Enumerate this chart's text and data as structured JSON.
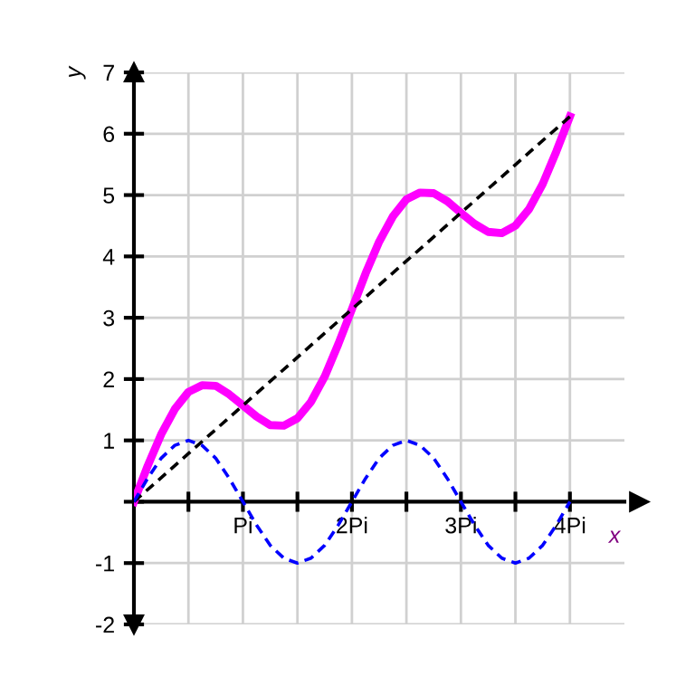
{
  "chart_data": {
    "type": "line",
    "xlabel": "x",
    "ylabel": "y",
    "x": [
      0,
      0.125,
      0.25,
      0.375,
      0.5,
      0.625,
      0.75,
      0.875,
      1,
      1.125,
      1.25,
      1.375,
      1.5,
      1.625,
      1.75,
      1.875,
      2,
      2.125,
      2.25,
      2.375,
      2.5,
      2.625,
      2.75,
      2.875,
      3,
      3.125,
      3.25,
      3.375,
      3.5,
      3.625,
      3.75,
      3.875,
      4
    ],
    "series": [
      {
        "color": "#ff00ff",
        "line_style": "solid",
        "values": [
          0,
          0.58,
          1.1,
          1.51,
          1.79,
          1.9,
          1.89,
          1.75,
          1.57,
          1.39,
          1.25,
          1.24,
          1.36,
          1.63,
          2.04,
          2.57,
          3.14,
          3.72,
          4.24,
          4.65,
          4.93,
          5.04,
          5.03,
          4.9,
          4.71,
          4.53,
          4.4,
          4.38,
          4.5,
          4.77,
          5.18,
          5.71,
          6.28
        ]
      },
      {
        "color": "#000000",
        "line_style": "dashed",
        "x": [
          0,
          4
        ],
        "values": [
          0,
          6.28
        ]
      },
      {
        "color": "#0000ff",
        "line_style": "dashed",
        "values": [
          0,
          0.38,
          0.71,
          0.92,
          1,
          0.92,
          0.71,
          0.38,
          0,
          -0.38,
          -0.71,
          -0.92,
          -1,
          -0.92,
          -0.71,
          -0.38,
          0,
          0.38,
          0.71,
          0.92,
          1,
          0.92,
          0.71,
          0.38,
          0,
          -0.38,
          -0.71,
          -0.92,
          -1,
          -0.92,
          -0.71,
          -0.38,
          0
        ]
      }
    ],
    "xlim": [
      0,
      4.5
    ],
    "ylim": [
      -2,
      7
    ],
    "xticks": [
      {
        "value": 0.5,
        "label": null
      },
      {
        "value": 1,
        "label": "Pi"
      },
      {
        "value": 1.5,
        "label": null
      },
      {
        "value": 2,
        "label": "2Pi"
      },
      {
        "value": 2.5,
        "label": null
      },
      {
        "value": 3,
        "label": "3Pi"
      },
      {
        "value": 3.5,
        "label": null
      },
      {
        "value": 4,
        "label": "4Pi"
      }
    ],
    "yticks": [
      -2,
      -1,
      {
        "value": 0,
        "label": null
      },
      1,
      2,
      3,
      4,
      5,
      6,
      7
    ],
    "grid": true,
    "marker": "none"
  }
}
